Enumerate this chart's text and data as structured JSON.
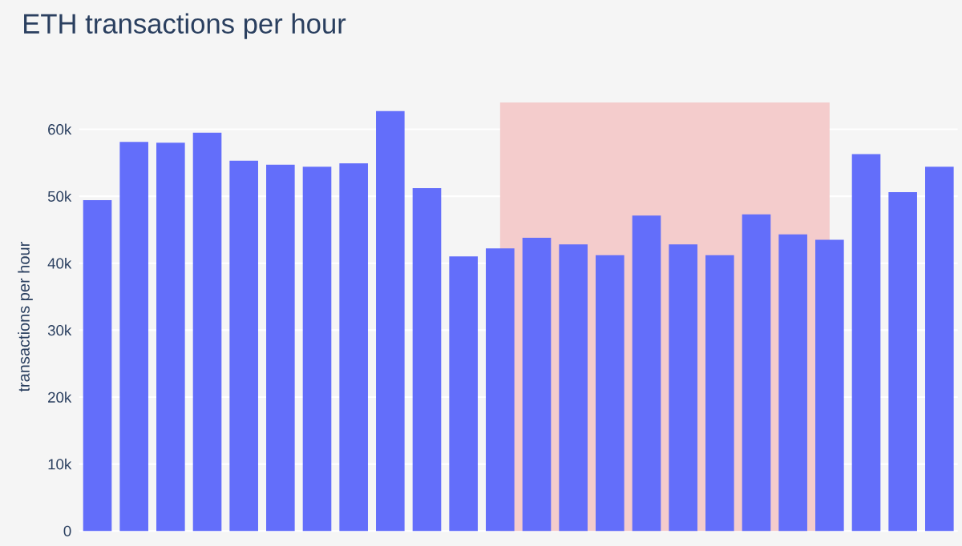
{
  "chart_data": {
    "type": "bar",
    "title": "ETH transactions per hour",
    "ylabel": "transactions per hour",
    "categories": [
      null,
      null,
      null,
      null,
      null,
      null,
      null,
      null,
      null,
      null,
      null,
      null,
      null,
      null,
      null,
      null,
      null,
      null,
      null,
      null,
      null,
      null,
      null,
      null
    ],
    "values": [
      49400,
      58100,
      58000,
      59500,
      55300,
      54700,
      54400,
      54900,
      62700,
      51200,
      41000,
      42200,
      43800,
      42800,
      41200,
      47100,
      42800,
      41200,
      47300,
      44300,
      43500,
      56300,
      50600,
      54400
    ],
    "color": "#636efa",
    "ylim": [
      0,
      64000
    ],
    "yticks": [
      {
        "value": 0,
        "label": "0"
      },
      {
        "value": 10000,
        "label": "10k"
      },
      {
        "value": 20000,
        "label": "20k"
      },
      {
        "value": 30000,
        "label": "30k"
      },
      {
        "value": 40000,
        "label": "40k"
      },
      {
        "value": 50000,
        "label": "50k"
      },
      {
        "value": 60000,
        "label": "60k"
      }
    ],
    "grid": "y"
  }
}
